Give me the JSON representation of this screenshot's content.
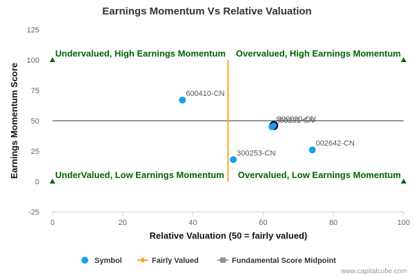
{
  "chart_data": {
    "type": "scatter",
    "title": "Earnings Momentum Vs Relative Valuation",
    "xlabel": "Relative Valuation (50 = fairly valued)",
    "ylabel": "Earnings Momentum Score",
    "xlim": [
      0,
      100
    ],
    "ylim": [
      -25,
      125
    ],
    "xticks": [
      0,
      20,
      40,
      60,
      80,
      100
    ],
    "yticks": [
      -25,
      0,
      25,
      50,
      75,
      100,
      125
    ],
    "grid": false,
    "legend_position": "bottom",
    "points": [
      {
        "label": "600410-CN",
        "x": 37,
        "y": 67
      },
      {
        "label": "300030-CN",
        "x": 63,
        "y": 46
      },
      {
        "label": "300231-CN",
        "x": 62.5,
        "y": 45
      },
      {
        "label": "002642-CN",
        "x": 74,
        "y": 26
      },
      {
        "label": "300253-CN",
        "x": 51.5,
        "y": 18
      }
    ],
    "highlighted_point": "300030-CN",
    "fairly_valued_x": 50,
    "fairly_valued_yrange": [
      0,
      100
    ],
    "midpoint_y": 50,
    "quadrant_labels": {
      "top_left": "Undervalued, High Earnings Momentum",
      "top_right": "Overvalued, High Earnings Momentum",
      "bottom_left": "UnderValued, Low Earnings Momentum",
      "bottom_right": "Overvalued, Low Earnings Momentum"
    },
    "corner_markers": [
      [
        0,
        100
      ],
      [
        100,
        100
      ],
      [
        0,
        0
      ],
      [
        100,
        0
      ]
    ],
    "legend": [
      {
        "name": "Symbol",
        "kind": "dot"
      },
      {
        "name": "Fairly Valued",
        "kind": "diamond-line"
      },
      {
        "name": "Fundamental Score Midpoint",
        "kind": "square-line"
      }
    ],
    "colors": {
      "points": "#1aa0e8",
      "fairly_valued": "#f5a623",
      "midpoint": "#8c96a3",
      "quadrant_text": "#006400",
      "markers": "#006400"
    }
  },
  "credit": "www.capitalcube.com"
}
